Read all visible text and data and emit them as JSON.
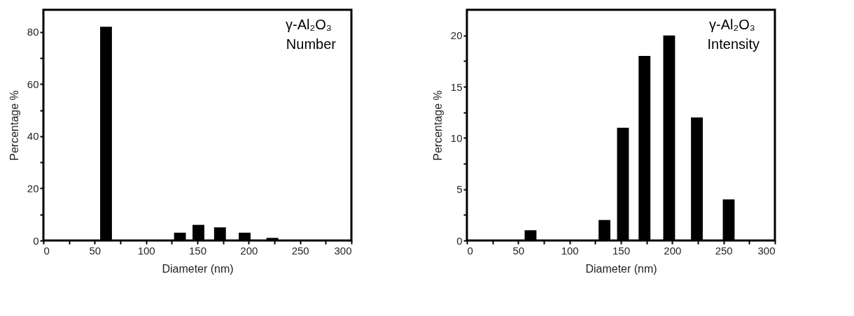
{
  "chart_data": [
    {
      "type": "bar",
      "xlabel": "Diameter (nm)",
      "ylabel": "Percentage %",
      "annotations": [
        "γ-Al₂O₃",
        "Number"
      ],
      "x": [
        61,
        133,
        151,
        172,
        196,
        223
      ],
      "values": [
        82,
        3,
        6,
        5,
        3,
        1
      ],
      "color": "#000000",
      "xlim": [
        0,
        300
      ],
      "xticks": [
        0,
        {
          "value": 25,
          "label": null
        },
        50,
        {
          "value": 75,
          "label": null
        },
        100,
        {
          "value": 125,
          "label": null
        },
        150,
        {
          "value": 175,
          "label": null
        },
        200,
        {
          "value": 225,
          "label": null
        },
        250,
        {
          "value": 275,
          "label": null
        },
        300
      ],
      "ylim": [
        0,
        88.5
      ],
      "yticks": [
        0,
        {
          "value": 10,
          "label": null
        },
        20,
        {
          "value": 30,
          "label": null
        },
        40,
        {
          "value": 50,
          "label": null
        },
        60,
        {
          "value": 70,
          "label": null
        },
        80
      ],
      "grid": false
    },
    {
      "type": "bar",
      "xlabel": "Diameter (nm)",
      "ylabel": "Percentage %",
      "annotations": [
        "γ-Al₂O₃",
        "Intensity"
      ],
      "x": [
        62,
        134,
        152,
        173,
        197,
        224,
        255
      ],
      "values": [
        1,
        2,
        11,
        18,
        20,
        12,
        4
      ],
      "color": "#000000",
      "xlim": [
        0,
        300
      ],
      "xticks": [
        0,
        {
          "value": 25,
          "label": null
        },
        50,
        {
          "value": 75,
          "label": null
        },
        100,
        {
          "value": 125,
          "label": null
        },
        150,
        {
          "value": 175,
          "label": null
        },
        200,
        {
          "value": 225,
          "label": null
        },
        250,
        {
          "value": 275,
          "label": null
        },
        300
      ],
      "ylim": [
        0,
        22.5
      ],
      "yticks": [
        0,
        {
          "value": 2.5,
          "label": null
        },
        5,
        {
          "value": 7.5,
          "label": null
        },
        10,
        {
          "value": 12.5,
          "label": null
        },
        15,
        {
          "value": 17.5,
          "label": null
        },
        20
      ],
      "grid": false
    }
  ]
}
